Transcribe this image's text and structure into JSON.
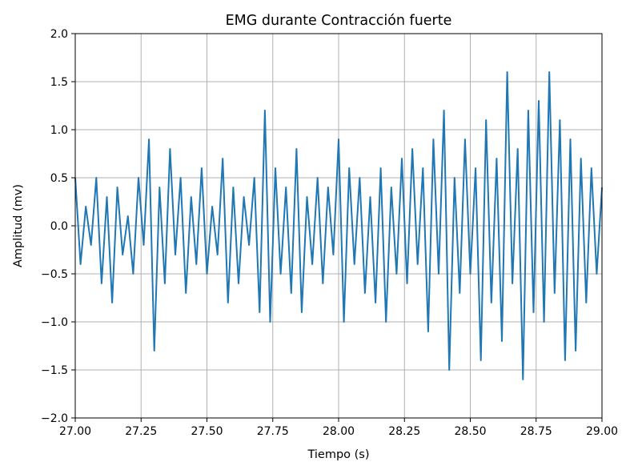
{
  "chart_data": {
    "type": "line",
    "title": "EMG durante Contracción fuerte",
    "xlabel": "Tiempo (s)",
    "ylabel": "Amplitud (mv)",
    "xlim": [
      27.0,
      29.0
    ],
    "ylim": [
      -2.0,
      2.0
    ],
    "xticks": [
      27.0,
      27.25,
      27.5,
      27.75,
      28.0,
      28.25,
      28.5,
      28.75,
      29.0
    ],
    "xtick_labels": [
      "27.00",
      "27.25",
      "27.50",
      "27.75",
      "28.00",
      "28.25",
      "28.50",
      "28.75",
      "29.00"
    ],
    "yticks": [
      -2.0,
      -1.5,
      -1.0,
      -0.5,
      0.0,
      0.5,
      1.0,
      1.5,
      2.0
    ],
    "ytick_labels": [
      "−2.0",
      "−1.5",
      "−1.0",
      "−0.5",
      "0.0",
      "0.5",
      "1.0",
      "1.5",
      "2.0"
    ],
    "grid": true,
    "series": [
      {
        "color": "#1f77b4",
        "x": [
          27.0,
          27.02,
          27.04,
          27.06,
          27.08,
          27.1,
          27.12,
          27.14,
          27.16,
          27.18,
          27.2,
          27.22,
          27.24,
          27.26,
          27.28,
          27.3,
          27.32,
          27.34,
          27.36,
          27.38,
          27.4,
          27.42,
          27.44,
          27.46,
          27.48,
          27.5,
          27.52,
          27.54,
          27.56,
          27.58,
          27.6,
          27.62,
          27.64,
          27.66,
          27.68,
          27.7,
          27.72,
          27.74,
          27.76,
          27.78,
          27.8,
          27.82,
          27.84,
          27.86,
          27.88,
          27.9,
          27.92,
          27.94,
          27.96,
          27.98,
          28.0,
          28.02,
          28.04,
          28.06,
          28.08,
          28.1,
          28.12,
          28.14,
          28.16,
          28.18,
          28.2,
          28.22,
          28.24,
          28.26,
          28.28,
          28.3,
          28.32,
          28.34,
          28.36,
          28.38,
          28.4,
          28.42,
          28.44,
          28.46,
          28.48,
          28.5,
          28.52,
          28.54,
          28.56,
          28.58,
          28.6,
          28.62,
          28.64,
          28.66,
          28.68,
          28.7,
          28.72,
          28.74,
          28.76,
          28.78,
          28.8,
          28.82,
          28.84,
          28.86,
          28.88,
          28.9,
          28.92,
          28.94,
          28.96,
          28.98,
          29.0
        ],
        "y": [
          0.5,
          -0.4,
          0.2,
          -0.2,
          0.5,
          -0.6,
          0.3,
          -0.8,
          0.4,
          -0.3,
          0.1,
          -0.5,
          0.5,
          -0.2,
          0.9,
          -1.3,
          0.4,
          -0.6,
          0.8,
          -0.3,
          0.5,
          -0.7,
          0.3,
          -0.4,
          0.6,
          -0.5,
          0.2,
          -0.3,
          0.7,
          -0.8,
          0.4,
          -0.6,
          0.3,
          -0.2,
          0.5,
          -0.9,
          1.2,
          -1.0,
          0.6,
          -0.5,
          0.4,
          -0.7,
          0.8,
          -0.9,
          0.3,
          -0.4,
          0.5,
          -0.6,
          0.4,
          -0.3,
          0.9,
          -1.0,
          0.6,
          -0.4,
          0.5,
          -0.7,
          0.3,
          -0.8,
          0.6,
          -1.0,
          0.4,
          -0.5,
          0.7,
          -0.6,
          0.8,
          -0.4,
          0.6,
          -1.1,
          0.9,
          -0.5,
          1.2,
          -1.5,
          0.5,
          -0.7,
          0.9,
          -0.5,
          0.6,
          -1.4,
          1.1,
          -0.8,
          0.7,
          -1.2,
          1.6,
          -0.6,
          0.8,
          -1.6,
          1.2,
          -0.9,
          1.3,
          -1.0,
          1.6,
          -0.7,
          1.1,
          -1.4,
          0.9,
          -1.3,
          0.7,
          -0.8,
          0.6,
          -0.5,
          0.4
        ]
      }
    ]
  }
}
